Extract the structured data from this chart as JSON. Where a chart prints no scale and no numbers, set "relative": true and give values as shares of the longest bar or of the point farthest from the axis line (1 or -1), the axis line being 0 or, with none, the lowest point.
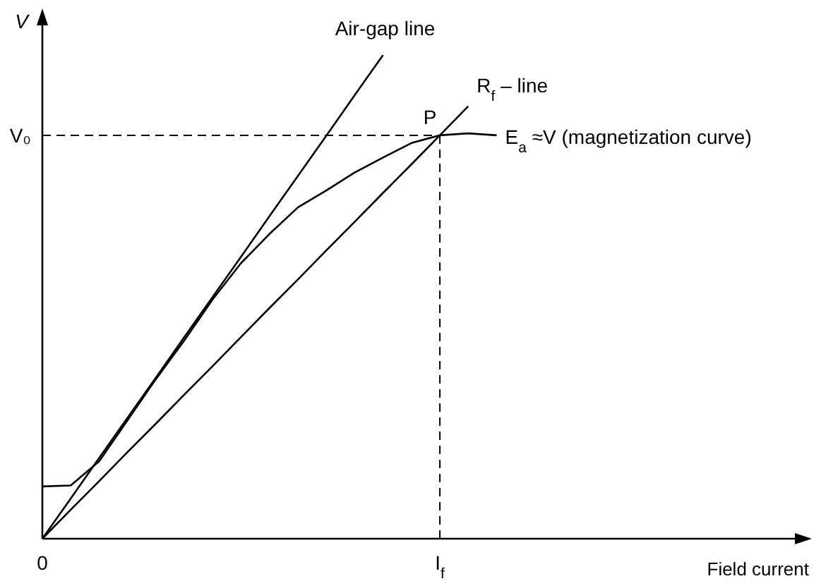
{
  "chart_data": {
    "type": "line",
    "relative": true,
    "xlabel": "Field current",
    "ylabel": "V",
    "line_style": "solid",
    "categories": [
      "0",
      null,
      null,
      null,
      null,
      null,
      null,
      null,
      null,
      null,
      null,
      null,
      null,
      null,
      "I$_{f}$",
      null,
      null,
      null,
      null,
      null,
      null,
      null,
      null,
      null,
      null,
      null,
      null,
      null
    ],
    "series": [
      {
        "name": "Air-gap line",
        "color": "#000000",
        "values": [
          0,
          0.083,
          0.167,
          0.25,
          0.333,
          0.417,
          0.5,
          0.583,
          0.667,
          0.75,
          0.833,
          0.917,
          1,
          null,
          null,
          null,
          null,
          null,
          null,
          null,
          null,
          null,
          null,
          null,
          null,
          null,
          null,
          null
        ]
      },
      {
        "name": "R$_{f}$ – line",
        "color": "#000000",
        "values": [
          0,
          0.06,
          0.119,
          0.179,
          0.238,
          0.298,
          0.357,
          0.417,
          0.477,
          0.536,
          0.596,
          0.655,
          0.715,
          0.774,
          0.834,
          0.894,
          null,
          null,
          null,
          null,
          null,
          null,
          null,
          null,
          null,
          null,
          null,
          null
        ]
      },
      {
        "name": "E$_{a}$ ≈V (magnetization curve)",
        "color": "#000000",
        "values": [
          0.108,
          0.11,
          0.16,
          0.245,
          0.33,
          0.41,
          0.495,
          0.57,
          0.63,
          0.685,
          0.72,
          0.757,
          0.788,
          0.818,
          0.834,
          0.838,
          0.834,
          null,
          null,
          null,
          null,
          null,
          null,
          null,
          null,
          null,
          null,
          null
        ]
      }
    ],
    "ref_lines": [
      {
        "axis": "y",
        "value": 0.834,
        "label": "V₀",
        "line_style": "dashed",
        "color": "#000000"
      },
      {
        "axis": "x",
        "value": "I$_{f}$",
        "line_style": "dashed",
        "color": "#000000"
      }
    ],
    "annotations": [
      "P"
    ]
  }
}
